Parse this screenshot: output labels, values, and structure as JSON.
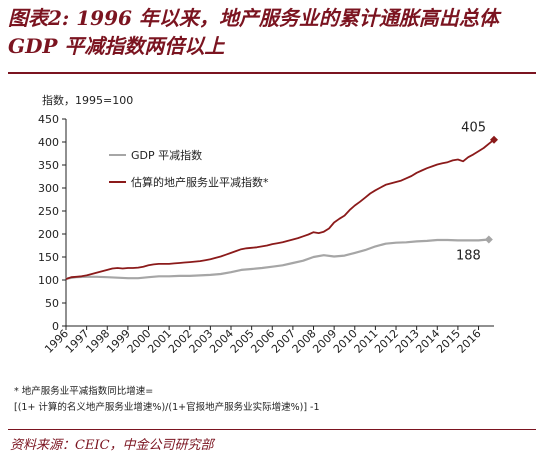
{
  "figure": {
    "title_line1": "图表2: 1996 年以来，地产服务业的累计通胀高出总体",
    "title_line2": "GDP 平减指数两倍以上"
  },
  "chart_data": {
    "type": "line",
    "ylabel": "指数，1995=100",
    "ylim": [
      0,
      450
    ],
    "yticks": [
      "0",
      "50",
      "100",
      "150",
      "200",
      "250",
      "300",
      "350",
      "400",
      "450"
    ],
    "xticks": [
      "1996",
      "1997",
      "1998",
      "1999",
      "2000",
      "2001",
      "2002",
      "2003",
      "2004",
      "2005",
      "2006",
      "2007",
      "2008",
      "2009",
      "2010",
      "2011",
      "2012",
      "2013",
      "2014",
      "2015",
      "2016"
    ],
    "xlim": [
      1996,
      2016.75
    ],
    "legend_position": "upper-left",
    "series": [
      {
        "name": "GDP 平减指数",
        "color": "#a6a6a6",
        "end_label": "188",
        "points": [
          [
            1996.0,
            103
          ],
          [
            1996.5,
            106
          ],
          [
            1997.0,
            107
          ],
          [
            1997.5,
            107
          ],
          [
            1998.0,
            106
          ],
          [
            1998.5,
            105
          ],
          [
            1999.0,
            104
          ],
          [
            1999.5,
            104
          ],
          [
            2000.0,
            106
          ],
          [
            2000.5,
            108
          ],
          [
            2001.0,
            108
          ],
          [
            2001.5,
            109
          ],
          [
            2002.0,
            109
          ],
          [
            2002.5,
            110
          ],
          [
            2003.0,
            111
          ],
          [
            2003.5,
            113
          ],
          [
            2004.0,
            117
          ],
          [
            2004.5,
            122
          ],
          [
            2005.0,
            124
          ],
          [
            2005.5,
            126
          ],
          [
            2006.0,
            129
          ],
          [
            2006.5,
            132
          ],
          [
            2007.0,
            137
          ],
          [
            2007.5,
            142
          ],
          [
            2008.0,
            150
          ],
          [
            2008.5,
            154
          ],
          [
            2009.0,
            151
          ],
          [
            2009.5,
            153
          ],
          [
            2010.0,
            159
          ],
          [
            2010.5,
            165
          ],
          [
            2011.0,
            173
          ],
          [
            2011.5,
            179
          ],
          [
            2012.0,
            181
          ],
          [
            2012.5,
            182
          ],
          [
            2013.0,
            184
          ],
          [
            2013.5,
            185
          ],
          [
            2014.0,
            187
          ],
          [
            2014.5,
            187
          ],
          [
            2015.0,
            186
          ],
          [
            2015.5,
            186
          ],
          [
            2016.0,
            186
          ],
          [
            2016.5,
            188
          ]
        ]
      },
      {
        "name": "估算的地产服务业平减指数*",
        "color": "#8b1a1a",
        "end_label": "405",
        "points": [
          [
            1996.0,
            102
          ],
          [
            1996.25,
            106
          ],
          [
            1996.5,
            107
          ],
          [
            1996.75,
            108
          ],
          [
            1997.0,
            110
          ],
          [
            1997.25,
            113
          ],
          [
            1997.5,
            116
          ],
          [
            1997.75,
            119
          ],
          [
            1998.0,
            122
          ],
          [
            1998.25,
            125
          ],
          [
            1998.5,
            126
          ],
          [
            1998.75,
            125
          ],
          [
            1999.0,
            126
          ],
          [
            1999.25,
            126
          ],
          [
            1999.5,
            127
          ],
          [
            1999.75,
            129
          ],
          [
            2000.0,
            132
          ],
          [
            2000.25,
            134
          ],
          [
            2000.5,
            135
          ],
          [
            2000.75,
            135
          ],
          [
            2001.0,
            135
          ],
          [
            2001.25,
            136
          ],
          [
            2001.5,
            137
          ],
          [
            2001.75,
            138
          ],
          [
            2002.0,
            139
          ],
          [
            2002.25,
            140
          ],
          [
            2002.5,
            141
          ],
          [
            2002.75,
            143
          ],
          [
            2003.0,
            145
          ],
          [
            2003.25,
            148
          ],
          [
            2003.5,
            151
          ],
          [
            2003.75,
            155
          ],
          [
            2004.0,
            159
          ],
          [
            2004.25,
            163
          ],
          [
            2004.5,
            167
          ],
          [
            2004.75,
            169
          ],
          [
            2005.0,
            170
          ],
          [
            2005.25,
            171
          ],
          [
            2005.5,
            173
          ],
          [
            2005.75,
            175
          ],
          [
            2006.0,
            178
          ],
          [
            2006.25,
            180
          ],
          [
            2006.5,
            182
          ],
          [
            2006.75,
            185
          ],
          [
            2007.0,
            188
          ],
          [
            2007.25,
            191
          ],
          [
            2007.5,
            195
          ],
          [
            2007.75,
            199
          ],
          [
            2008.0,
            204
          ],
          [
            2008.25,
            202
          ],
          [
            2008.5,
            205
          ],
          [
            2008.75,
            212
          ],
          [
            2009.0,
            225
          ],
          [
            2009.25,
            233
          ],
          [
            2009.5,
            240
          ],
          [
            2009.75,
            252
          ],
          [
            2010.0,
            262
          ],
          [
            2010.25,
            270
          ],
          [
            2010.5,
            279
          ],
          [
            2010.75,
            288
          ],
          [
            2011.0,
            295
          ],
          [
            2011.25,
            301
          ],
          [
            2011.5,
            307
          ],
          [
            2011.75,
            310
          ],
          [
            2012.0,
            313
          ],
          [
            2012.25,
            316
          ],
          [
            2012.5,
            321
          ],
          [
            2012.75,
            326
          ],
          [
            2013.0,
            333
          ],
          [
            2013.25,
            338
          ],
          [
            2013.5,
            343
          ],
          [
            2013.75,
            347
          ],
          [
            2014.0,
            351
          ],
          [
            2014.25,
            354
          ],
          [
            2014.5,
            356
          ],
          [
            2014.75,
            360
          ],
          [
            2015.0,
            362
          ],
          [
            2015.25,
            358
          ],
          [
            2015.5,
            367
          ],
          [
            2015.75,
            373
          ],
          [
            2016.0,
            380
          ],
          [
            2016.25,
            387
          ],
          [
            2016.5,
            396
          ],
          [
            2016.75,
            405
          ]
        ]
      }
    ]
  },
  "footnotes": {
    "line1": "* 地产服务业平减指数同比增速=",
    "line2": "[(1+ 计算的名义地产服务业增速%)/(1+官报地产服务业实际增速%)] -1"
  },
  "source": "资料来源：CEIC，中金公司研究部"
}
